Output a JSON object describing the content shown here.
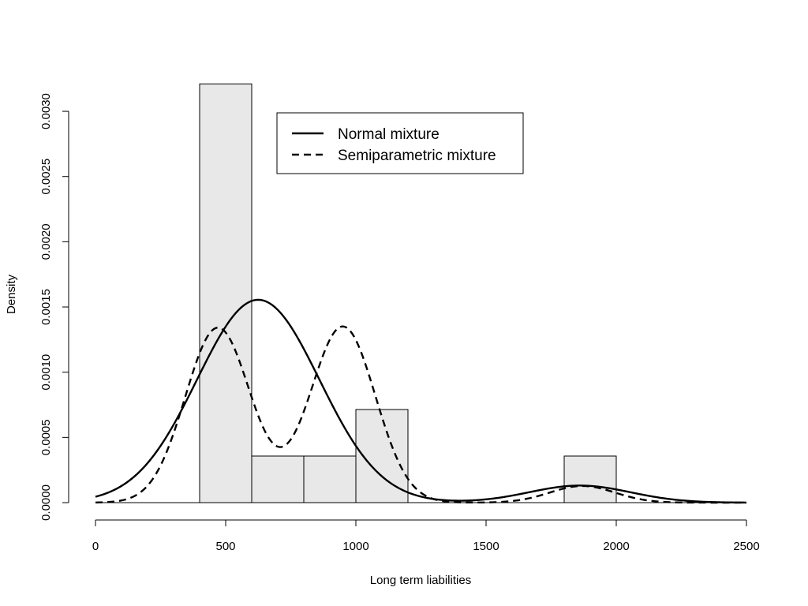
{
  "chart_data": {
    "type": "histogram",
    "xlabel": "Long term liabilities",
    "ylabel": "Density",
    "xlim": [
      0,
      2500
    ],
    "ylim": [
      0,
      0.0032
    ],
    "x_ticks": [
      0,
      500,
      1000,
      1500,
      2000,
      2500
    ],
    "y_ticks": [
      "0.0000",
      "0.0005",
      "0.0010",
      "0.0015",
      "0.0020",
      "0.0025",
      "0.0030"
    ],
    "grid": false,
    "bin_fill_color": "#e8e8e8",
    "bins": [
      {
        "from": 400,
        "to": 600,
        "density": 0.00321
      },
      {
        "from": 600,
        "to": 800,
        "density": 0.000357
      },
      {
        "from": 800,
        "to": 1000,
        "density": 0.000357
      },
      {
        "from": 1000,
        "to": 1200,
        "density": 0.000714
      },
      {
        "from": 1800,
        "to": 2000,
        "density": 0.000357
      }
    ],
    "series": [
      {
        "name": "Normal mixture",
        "style": "solid",
        "components": [
          {
            "mean": 625,
            "sd": 235,
            "weight": 0.916
          },
          {
            "mean": 1860,
            "sd": 195,
            "weight": 0.064
          }
        ]
      },
      {
        "name": "Semiparametric mixture",
        "style": "dashed",
        "components": [
          {
            "mean": 470,
            "sd": 125,
            "weight": 0.42
          },
          {
            "mean": 950,
            "sd": 125,
            "weight": 0.423
          },
          {
            "mean": 1870,
            "sd": 125,
            "weight": 0.04
          }
        ]
      }
    ],
    "legend": {
      "placement": "top-center",
      "entries": [
        {
          "label": "Normal mixture",
          "style": "solid"
        },
        {
          "label": "Semiparametric mixture",
          "style": "dashed"
        }
      ]
    }
  }
}
